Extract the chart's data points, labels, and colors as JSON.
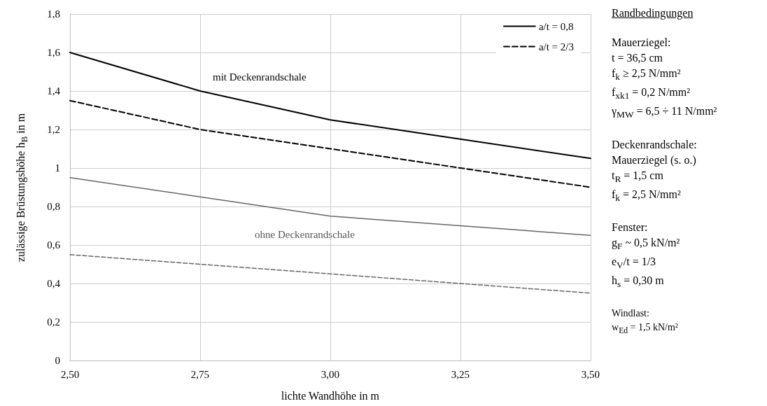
{
  "chart_data": {
    "type": "line",
    "xlabel": "lichte Wandhöhe in m",
    "ylabel": "zulässige Brüstungshöhe h$_{B}$ in m",
    "x": [
      2.5,
      2.75,
      3.0,
      3.25,
      3.5
    ],
    "series": [
      {
        "name": "a/t = 0,8",
        "color": "#000000",
        "line_style": "solid",
        "values": [
          1.6,
          1.4,
          1.25,
          1.15,
          1.05
        ]
      },
      {
        "name": "a/t = 2/3",
        "color": "#000000",
        "line_style": "dashed",
        "values": [
          1.35,
          1.2,
          1.1,
          1.0,
          0.9
        ]
      },
      {
        "color": "#666666",
        "line_style": "solid",
        "values": [
          0.95,
          0.85,
          0.75,
          0.7,
          0.65
        ]
      },
      {
        "color": "#666666",
        "line_style": "dashed",
        "values": [
          0.55,
          0.5,
          0.45,
          0.4,
          0.35
        ]
      }
    ],
    "xlim": [
      2.5,
      3.5
    ],
    "xticks": [
      {
        "value": 2.5,
        "label": "2,50"
      },
      {
        "value": 2.75,
        "label": "2,75"
      },
      {
        "value": 3.0,
        "label": "3,00"
      },
      {
        "value": 3.25,
        "label": "3,25"
      },
      {
        "value": 3.5,
        "label": "3,50"
      }
    ],
    "ylim": [
      0,
      1.8
    ],
    "yticks": [
      0,
      {
        "value": 0.2,
        "label": "0,2"
      },
      {
        "value": 0.4,
        "label": "0,4"
      },
      {
        "value": 0.6,
        "label": "0,6"
      },
      {
        "value": 0.8,
        "label": "0,8"
      },
      1,
      {
        "value": 1.2,
        "label": "1,2"
      },
      {
        "value": 1.4,
        "label": "1,4"
      },
      {
        "value": 1.6,
        "label": "1,6"
      },
      {
        "value": 1.8,
        "label": "1,8"
      }
    ],
    "grid": true,
    "legend": "top right",
    "marker": "none",
    "annotations": [
      "mit Deckenrandschale",
      "ohne Deckenrandschale",
      "Randbedingungen",
      "Mauerziegel:\nt = 36,5 cm\nf$_{k}$ ≥ 2,5 N/mm²\nf$_{xk1}$ = 0,2 N/mm²\nγ$_{MW}$ = 6,5 ÷ 11 N/mm²",
      "Deckenrandschale:\nMauerziegel (s. o.)\nt$_{R}$ = 1,5 cm\nf$_{k}$ = 2,5 N/mm²",
      "Fenster:\ng$_{F}$ ~ 0,5 kN/m²\ne$_{V}$/t = 1/3\nh$_{s}$ = 0,30 m",
      "Windlast:\nw$_{Ed}$ = 1,5 kN/m²"
    ]
  }
}
